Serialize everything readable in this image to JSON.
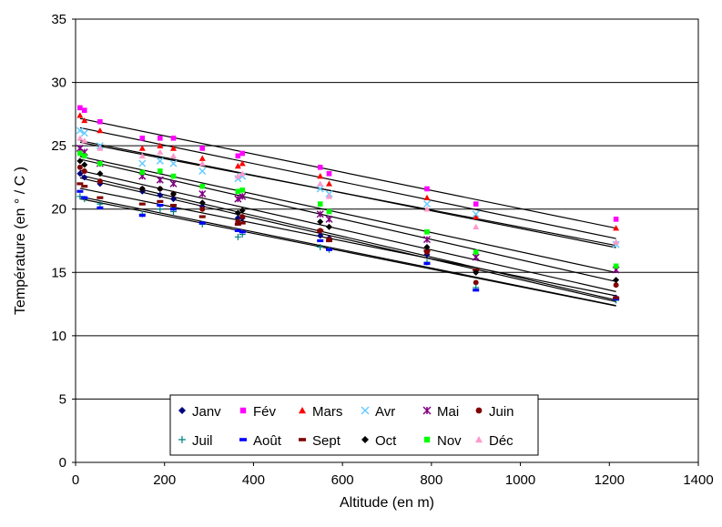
{
  "chart_data": {
    "type": "scatter",
    "title": "",
    "xlabel": "Altitude (en m)",
    "ylabel": "Température (en ° / C )",
    "xlim": [
      0,
      1400
    ],
    "ylim": [
      0,
      35
    ],
    "xticks": [
      0,
      200,
      400,
      600,
      800,
      1000,
      1200,
      1400
    ],
    "yticks": [
      0,
      5,
      10,
      15,
      20,
      25,
      30,
      35
    ],
    "grid": "horizontal",
    "legend_position": "bottom-left, inside plot",
    "altitudes": [
      10,
      20,
      55,
      150,
      190,
      220,
      285,
      365,
      375,
      550,
      570,
      790,
      900,
      1215
    ],
    "series": [
      {
        "name": "Janv",
        "color": "#000080",
        "marker": "diamond",
        "values": [
          22.8,
          22.5,
          22.0,
          21.4,
          21.1,
          20.8,
          20.2,
          19.3,
          19.3,
          17.9,
          17.7,
          16.4,
          15.0,
          13.0
        ]
      },
      {
        "name": "Fév",
        "color": "#ff00ff",
        "marker": "square",
        "values": [
          28.0,
          27.8,
          26.9,
          25.6,
          25.6,
          25.6,
          24.8,
          24.2,
          24.4,
          23.3,
          22.8,
          21.6,
          20.4,
          19.2
        ]
      },
      {
        "name": "Mars",
        "color": "#ff0000",
        "marker": "triangle",
        "values": [
          27.4,
          27.0,
          26.2,
          24.8,
          25.0,
          24.8,
          24.0,
          23.4,
          23.6,
          22.6,
          22.0,
          20.9,
          19.4,
          18.5
        ]
      },
      {
        "name": "Avr",
        "color": "#66ccff",
        "marker": "x",
        "values": [
          26.2,
          26.0,
          25.0,
          23.6,
          23.8,
          23.6,
          23.0,
          22.4,
          22.6,
          21.6,
          21.2,
          20.4,
          19.6,
          17.2
        ]
      },
      {
        "name": "Mai",
        "color": "#800080",
        "marker": "star",
        "values": [
          24.8,
          24.5,
          23.6,
          22.6,
          22.3,
          22.0,
          21.2,
          20.8,
          21.0,
          19.6,
          19.2,
          17.6,
          16.2,
          15.2
        ]
      },
      {
        "name": "Juin",
        "color": "#800000",
        "marker": "circle",
        "values": [
          23.3,
          23.0,
          22.2,
          21.6,
          21.6,
          21.2,
          20.0,
          19.0,
          19.4,
          18.3,
          17.6,
          16.6,
          14.2,
          14.0
        ]
      },
      {
        "name": "Juil",
        "color": "#008080",
        "marker": "plus",
        "values": [
          21.0,
          20.8,
          20.4,
          19.6,
          20.0,
          19.8,
          18.8,
          17.8,
          18.0,
          17.0,
          16.8,
          15.8,
          13.8,
          12.8
        ]
      },
      {
        "name": "Août",
        "color": "#0000ff",
        "marker": "dash",
        "values": [
          21.4,
          20.9,
          20.1,
          19.5,
          20.3,
          20.0,
          18.9,
          18.3,
          18.2,
          17.5,
          16.8,
          15.7,
          13.6,
          12.9
        ]
      },
      {
        "name": "Sept",
        "color": "#800000",
        "marker": "dash",
        "values": [
          22.0,
          21.8,
          20.9,
          20.4,
          20.6,
          20.3,
          19.4,
          18.8,
          18.9,
          18.3,
          17.5,
          16.7,
          15.2,
          13.0
        ]
      },
      {
        "name": "Oct",
        "color": "#000000",
        "marker": "diamond",
        "values": [
          23.8,
          23.5,
          22.8,
          21.6,
          21.6,
          21.2,
          20.5,
          19.7,
          19.9,
          19.0,
          18.6,
          17.0,
          15.0,
          14.4
        ]
      },
      {
        "name": "Nov",
        "color": "#00ff00",
        "marker": "square",
        "values": [
          24.4,
          24.2,
          23.6,
          22.9,
          23.0,
          22.6,
          21.8,
          21.4,
          21.5,
          20.4,
          19.8,
          18.2,
          16.6,
          15.5
        ]
      },
      {
        "name": "Déc",
        "color": "#ff99cc",
        "marker": "triangle",
        "values": [
          25.6,
          25.4,
          24.8,
          24.2,
          24.5,
          24.2,
          23.6,
          22.6,
          22.8,
          22.0,
          21.0,
          20.0,
          18.6,
          17.4
        ]
      }
    ],
    "trendlines": "linear per series"
  }
}
